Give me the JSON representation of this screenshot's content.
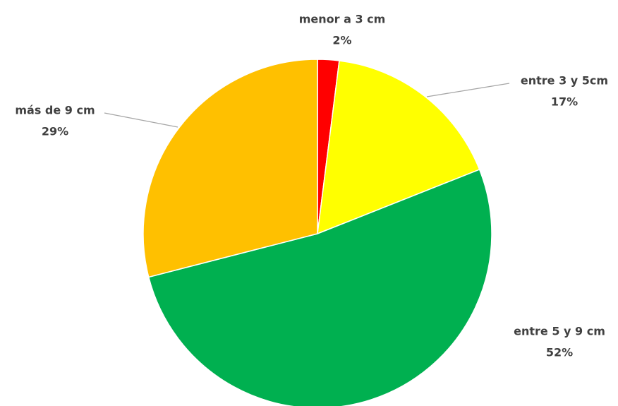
{
  "chart_data": {
    "type": "pie",
    "categories": [
      "menor a 3 cm",
      "entre 3 y 5cm",
      "entre 5 y 9 cm",
      "más de 9 cm"
    ],
    "values": [
      2,
      17,
      52,
      29
    ],
    "value_labels": [
      "2%",
      "17%",
      "52%",
      "29%"
    ],
    "colors": [
      "#ff0000",
      "#ffff00",
      "#00b050",
      "#ffc000"
    ]
  }
}
